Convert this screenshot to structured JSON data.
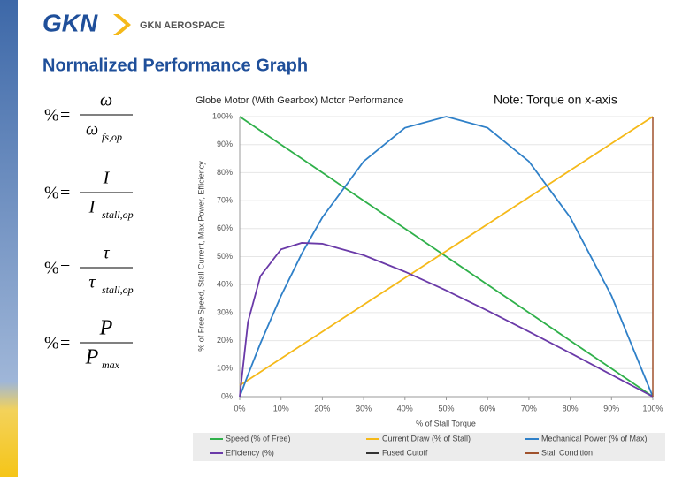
{
  "header": {
    "logo_mark": "GKN",
    "logo_text": "GKN AEROSPACE"
  },
  "slide_title": "Normalized Performance Graph",
  "formulas": [
    {
      "lhs": "%",
      "numerator": "ω",
      "denominator": "ω",
      "subscript": "fs,op"
    },
    {
      "lhs": "%",
      "numerator": "I",
      "denominator": "I",
      "subscript": "stall,op"
    },
    {
      "lhs": "%",
      "numerator": "τ",
      "denominator": "τ",
      "subscript": "stall,op"
    },
    {
      "lhs": "%",
      "numerator": "P",
      "denominator": "P",
      "subscript": "max"
    }
  ],
  "chart_data": {
    "type": "line",
    "title": "Globe Motor (With Gearbox) Motor Performance",
    "note": "Note: Torque on x-axis",
    "x_label": "% of Stall Torque",
    "y_label": "% of Free Speed, Stall Current, Max Power, Efficiency",
    "x": [
      0,
      2,
      5,
      10,
      15,
      20,
      30,
      40,
      50,
      60,
      70,
      80,
      90,
      100
    ],
    "xlim": [
      0,
      100
    ],
    "xticks": [
      {
        "value": 0,
        "label": "0%"
      },
      {
        "value": 10,
        "label": "10%"
      },
      {
        "value": 20,
        "label": "20%"
      },
      {
        "value": 30,
        "label": "30%"
      },
      {
        "value": 40,
        "label": "40%"
      },
      {
        "value": 50,
        "label": "50%"
      },
      {
        "value": 60,
        "label": "60%"
      },
      {
        "value": 70,
        "label": "70%"
      },
      {
        "value": 80,
        "label": "80%"
      },
      {
        "value": 90,
        "label": "90%"
      },
      {
        "value": 100,
        "label": "100%"
      }
    ],
    "ylim": [
      0,
      100
    ],
    "yticks": [
      {
        "value": 0,
        "label": "0%"
      },
      {
        "value": 10,
        "label": "10%"
      },
      {
        "value": 20,
        "label": "20%"
      },
      {
        "value": 30,
        "label": "30%"
      },
      {
        "value": 40,
        "label": "40%"
      },
      {
        "value": 50,
        "label": "50%"
      },
      {
        "value": 60,
        "label": "60%"
      },
      {
        "value": 70,
        "label": "70%"
      },
      {
        "value": 80,
        "label": "80%"
      },
      {
        "value": 90,
        "label": "90%"
      },
      {
        "value": 100,
        "label": "100%"
      }
    ],
    "series": [
      {
        "name": "Speed (% of Free)",
        "color": "#2fb04a",
        "values": [
          100,
          98,
          95,
          90,
          85,
          80,
          70,
          60,
          50,
          40,
          30,
          20,
          10,
          0
        ]
      },
      {
        "name": "Current Draw (% of Stall)",
        "color": "#f5b919",
        "values": [
          4,
          5.9,
          8.8,
          13.6,
          18.4,
          23.2,
          32.8,
          42.4,
          52,
          61.6,
          71.2,
          80.8,
          90.4,
          100
        ]
      },
      {
        "name": "Mechanical Power (% of Max)",
        "color": "#2f80c8",
        "values": [
          0,
          7.8,
          19,
          36,
          51,
          64,
          84,
          96,
          100,
          96,
          84,
          64,
          36,
          0
        ]
      },
      {
        "name": "Efficiency (%)",
        "color": "#6a3aa8",
        "values": [
          0,
          26.7,
          43,
          52.6,
          54.9,
          54.6,
          50.5,
          44.6,
          37.9,
          30.7,
          23.2,
          15.6,
          7.8,
          0
        ]
      }
    ],
    "reference_lines": [
      {
        "name": "Fused Cutoff",
        "color": "#333333"
      },
      {
        "name": "Stall Condition",
        "color": "#a0522d",
        "x": 100
      }
    ]
  }
}
